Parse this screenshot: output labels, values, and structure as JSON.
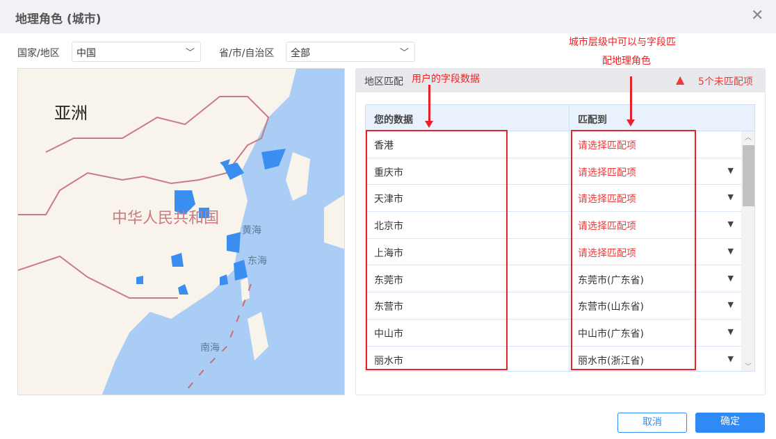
{
  "dialog": {
    "title": "地理角色 (城市)",
    "close_icon": "close-icon"
  },
  "filters": {
    "country_label": "国家/地区",
    "country_value": "中国",
    "province_label": "省/市/自治区",
    "province_value": "全部"
  },
  "map": {
    "labels": {
      "asia": "亚洲",
      "china": "中华人民共和国",
      "yellow_sea": "黄海",
      "east_sea": "东海",
      "south_sea": "南海"
    },
    "colors": {
      "sea": "#a9cdf5",
      "land": "#f8f4ec",
      "highlight": "#3a8ef0",
      "border": "#c97a84"
    }
  },
  "panel": {
    "title": "地区匹配",
    "warning": "5个未匹配项",
    "warning_color": "#f03a3a"
  },
  "table": {
    "headers": [
      "您的数据",
      "匹配到"
    ],
    "rows": [
      {
        "data": "香港",
        "match": "请选择匹配项",
        "unmatched": true
      },
      {
        "data": "重庆市",
        "match": "请选择匹配项",
        "unmatched": true
      },
      {
        "data": "天津市",
        "match": "请选择匹配项",
        "unmatched": true
      },
      {
        "data": "北京市",
        "match": "请选择匹配项",
        "unmatched": true
      },
      {
        "data": "上海市",
        "match": "请选择匹配项",
        "unmatched": true
      },
      {
        "data": "东莞市",
        "match": "东莞市(广东省)",
        "unmatched": false
      },
      {
        "data": "东营市",
        "match": "东营市(山东省)",
        "unmatched": false
      },
      {
        "data": "中山市",
        "match": "中山市(广东省)",
        "unmatched": false
      },
      {
        "data": "丽水市",
        "match": "丽水市(浙江省)",
        "unmatched": false
      }
    ]
  },
  "annotations": {
    "left": "用户的字段数据",
    "right_line1": "城市层级中可以与字段匹",
    "right_line2": "配地理角色"
  },
  "footer": {
    "cancel": "取消",
    "confirm": "确定",
    "confirm_color": "#2f8af5"
  }
}
